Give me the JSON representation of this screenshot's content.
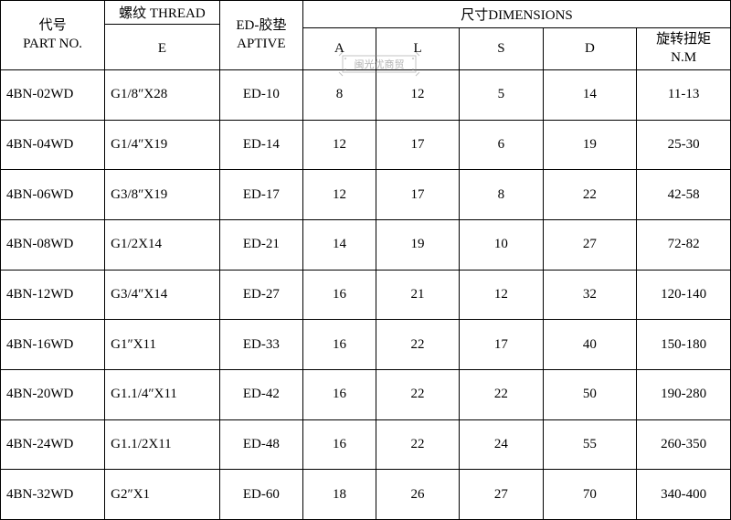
{
  "header": {
    "part_no": "代号\nPART NO.",
    "thread_top": "螺纹 THREAD",
    "thread_sub": "E",
    "ed_top": "ED-胶垫",
    "ed_sub": "APTIVE",
    "dims_top": "尺寸DIMENSIONS",
    "A": "A",
    "L": "L",
    "S": "S",
    "D": "D",
    "NM": "旋转扭矩\nN.M"
  },
  "columns": [
    "part_no",
    "thread",
    "ed",
    "A",
    "L",
    "S",
    "D",
    "NM"
  ],
  "rows": [
    {
      "part_no": "4BN-02WD",
      "thread": "G1/8″X28",
      "ed": "ED-10",
      "A": "8",
      "L": "12",
      "S": "5",
      "D": "14",
      "NM": "11-13"
    },
    {
      "part_no": "4BN-04WD",
      "thread": "G1/4″X19",
      "ed": "ED-14",
      "A": "12",
      "L": "17",
      "S": "6",
      "D": "19",
      "NM": "25-30"
    },
    {
      "part_no": "4BN-06WD",
      "thread": "G3/8″X19",
      "ed": "ED-17",
      "A": "12",
      "L": "17",
      "S": "8",
      "D": "22",
      "NM": "42-58"
    },
    {
      "part_no": "4BN-08WD",
      "thread": "G1/2X14",
      "ed": "ED-21",
      "A": "14",
      "L": "19",
      "S": "10",
      "D": "27",
      "NM": "72-82"
    },
    {
      "part_no": "4BN-12WD",
      "thread": "G3/4″X14",
      "ed": "ED-27",
      "A": "16",
      "L": "21",
      "S": "12",
      "D": "32",
      "NM": "120-140"
    },
    {
      "part_no": "4BN-16WD",
      "thread": "G1″X11",
      "ed": "ED-33",
      "A": "16",
      "L": "22",
      "S": "17",
      "D": "40",
      "NM": "150-180"
    },
    {
      "part_no": "4BN-20WD",
      "thread": "G1.1/4″X11",
      "ed": "ED-42",
      "A": "16",
      "L": "22",
      "S": "22",
      "D": "50",
      "NM": "190-280"
    },
    {
      "part_no": "4BN-24WD",
      "thread": "G1.1/2X11",
      "ed": "ED-48",
      "A": "16",
      "L": "22",
      "S": "24",
      "D": "55",
      "NM": "260-350"
    },
    {
      "part_no": "4BN-32WD",
      "thread": "G2″X1",
      "ed": "ED-60",
      "A": "18",
      "L": "26",
      "S": "27",
      "D": "70",
      "NM": "340-400"
    }
  ],
  "style": {
    "border_color": "#000000",
    "background": "#ffffff",
    "font_family": "SimSun",
    "font_size_pt": 11,
    "text_color": "#000000",
    "watermark_text": "闽光优商贸",
    "watermark_color": "#808080"
  }
}
